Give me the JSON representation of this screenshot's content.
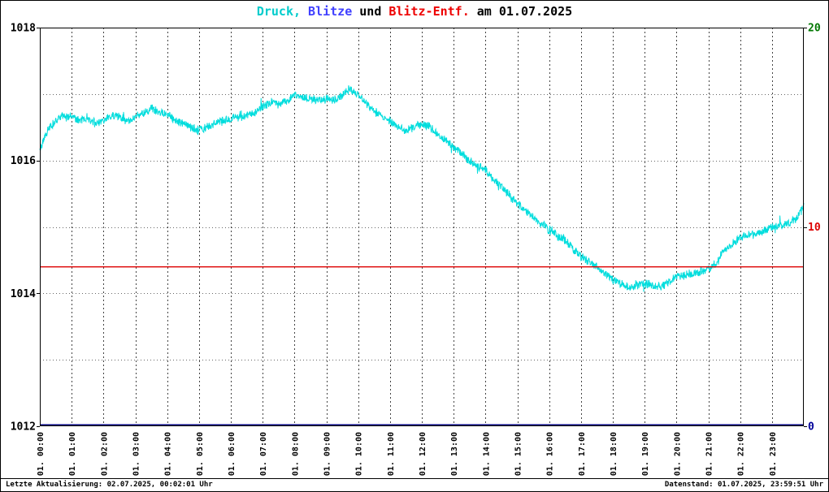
{
  "header": {
    "title_parts": [
      {
        "text": "Druck,",
        "color": "#00cccc"
      },
      {
        "text": "Blitze",
        "color": "#4040ff"
      },
      {
        "text": "und",
        "color": "#000000"
      },
      {
        "text": "Blitz-Entf.",
        "color": "#ee0000"
      },
      {
        "text": "am 01.07.2025",
        "color": "#000000"
      }
    ],
    "title_full": "Druck, Blitze und Blitz-Entf. am 01.07.2025"
  },
  "chart_data": {
    "type": "line",
    "title": "Druck, Blitze und Blitz-Entf. am 01.07.2025",
    "grid": {
      "vertical": "hourly dashed",
      "horizontal": "dotted every 1 hPa"
    },
    "legend": "none",
    "x": {
      "unit": "time",
      "range": [
        0,
        24
      ],
      "tick_labels": [
        "01. 00:00",
        "01. 01:00",
        "01. 02:00",
        "01. 03:00",
        "01. 04:00",
        "01. 05:00",
        "01. 06:00",
        "01. 07:00",
        "01. 08:00",
        "01. 09:00",
        "01. 10:00",
        "01. 11:00",
        "01. 12:00",
        "01. 13:00",
        "01. 14:00",
        "01. 15:00",
        "01. 16:00",
        "01. 17:00",
        "01. 18:00",
        "01. 19:00",
        "01. 20:00",
        "01. 21:00",
        "01. 22:00",
        "01. 23:00"
      ]
    },
    "y_left": {
      "range": [
        1012,
        1018
      ],
      "tick_values": [
        1018,
        1016,
        1014,
        1012
      ],
      "grid_values": [
        1013,
        1014,
        1015,
        1016,
        1017
      ],
      "color": "#000000"
    },
    "y_right": {
      "range": [
        0,
        20
      ],
      "ticks": [
        {
          "value": 20,
          "color": "#007700"
        },
        {
          "value": 10,
          "color": "#dd0000"
        },
        {
          "value": 0,
          "color": "#000099"
        }
      ]
    },
    "series": [
      {
        "name": "Druck",
        "color": "#00dddd",
        "axis": "left",
        "style": "noisy-line",
        "noise": 0.075,
        "points": [
          [
            0,
            1016.15
          ],
          [
            0.1,
            1016.3
          ],
          [
            0.3,
            1016.5
          ],
          [
            0.5,
            1016.6
          ],
          [
            0.75,
            1016.68
          ],
          [
            1,
            1016.65
          ],
          [
            1.25,
            1016.6
          ],
          [
            1.5,
            1016.65
          ],
          [
            1.75,
            1016.55
          ],
          [
            2,
            1016.6
          ],
          [
            2.25,
            1016.68
          ],
          [
            2.5,
            1016.65
          ],
          [
            2.75,
            1016.6
          ],
          [
            3,
            1016.65
          ],
          [
            3.25,
            1016.7
          ],
          [
            3.5,
            1016.78
          ],
          [
            3.75,
            1016.72
          ],
          [
            4,
            1016.7
          ],
          [
            4.25,
            1016.6
          ],
          [
            4.5,
            1016.55
          ],
          [
            4.75,
            1016.5
          ],
          [
            5,
            1016.45
          ],
          [
            5.25,
            1016.5
          ],
          [
            5.5,
            1016.55
          ],
          [
            5.75,
            1016.6
          ],
          [
            6,
            1016.62
          ],
          [
            6.25,
            1016.68
          ],
          [
            6.5,
            1016.68
          ],
          [
            6.75,
            1016.72
          ],
          [
            7,
            1016.8
          ],
          [
            7.25,
            1016.88
          ],
          [
            7.5,
            1016.85
          ],
          [
            7.75,
            1016.9
          ],
          [
            8,
            1016.98
          ],
          [
            8.25,
            1016.95
          ],
          [
            8.5,
            1016.93
          ],
          [
            8.75,
            1016.9
          ],
          [
            9,
            1016.93
          ],
          [
            9.25,
            1016.9
          ],
          [
            9.5,
            1016.98
          ],
          [
            9.75,
            1017.08
          ],
          [
            10,
            1016.98
          ],
          [
            10.25,
            1016.85
          ],
          [
            10.5,
            1016.75
          ],
          [
            10.75,
            1016.65
          ],
          [
            11,
            1016.6
          ],
          [
            11.25,
            1016.5
          ],
          [
            11.5,
            1016.45
          ],
          [
            11.75,
            1016.5
          ],
          [
            12,
            1016.55
          ],
          [
            12.25,
            1016.5
          ],
          [
            12.5,
            1016.4
          ],
          [
            12.75,
            1016.3
          ],
          [
            13,
            1016.2
          ],
          [
            13.25,
            1016.1
          ],
          [
            13.5,
            1016.0
          ],
          [
            13.75,
            1015.92
          ],
          [
            14,
            1015.85
          ],
          [
            14.25,
            1015.72
          ],
          [
            14.5,
            1015.6
          ],
          [
            14.75,
            1015.48
          ],
          [
            15,
            1015.35
          ],
          [
            15.25,
            1015.25
          ],
          [
            15.5,
            1015.15
          ],
          [
            15.75,
            1015.05
          ],
          [
            16,
            1014.95
          ],
          [
            16.25,
            1014.88
          ],
          [
            16.5,
            1014.8
          ],
          [
            16.75,
            1014.68
          ],
          [
            17,
            1014.55
          ],
          [
            17.25,
            1014.48
          ],
          [
            17.5,
            1014.4
          ],
          [
            17.75,
            1014.3
          ],
          [
            18,
            1014.2
          ],
          [
            18.25,
            1014.15
          ],
          [
            18.5,
            1014.1
          ],
          [
            18.75,
            1014.12
          ],
          [
            19,
            1014.15
          ],
          [
            19.25,
            1014.12
          ],
          [
            19.5,
            1014.1
          ],
          [
            19.75,
            1014.18
          ],
          [
            20,
            1014.25
          ],
          [
            20.25,
            1014.28
          ],
          [
            20.5,
            1014.3
          ],
          [
            20.75,
            1014.32
          ],
          [
            21,
            1014.35
          ],
          [
            21.25,
            1014.45
          ],
          [
            21.5,
            1014.65
          ],
          [
            21.75,
            1014.75
          ],
          [
            22,
            1014.85
          ],
          [
            22.25,
            1014.88
          ],
          [
            22.5,
            1014.9
          ],
          [
            22.75,
            1014.95
          ],
          [
            23,
            1015.0
          ],
          [
            23.25,
            1015.02
          ],
          [
            23.5,
            1015.05
          ],
          [
            23.75,
            1015.12
          ],
          [
            24,
            1015.3
          ]
        ]
      },
      {
        "name": "Blitze",
        "color": "#000080",
        "axis": "right",
        "style": "constant",
        "value": 0
      },
      {
        "name": "Blitz-Entf.",
        "color": "#dd0000",
        "axis": "right",
        "style": "constant",
        "value": 8
      }
    ]
  },
  "footer": {
    "left": "Letzte Aktualisierung: 02.07.2025, 00:02:01 Uhr",
    "right": "Datenstand: 01.07.2025, 23:59:51 Uhr"
  }
}
